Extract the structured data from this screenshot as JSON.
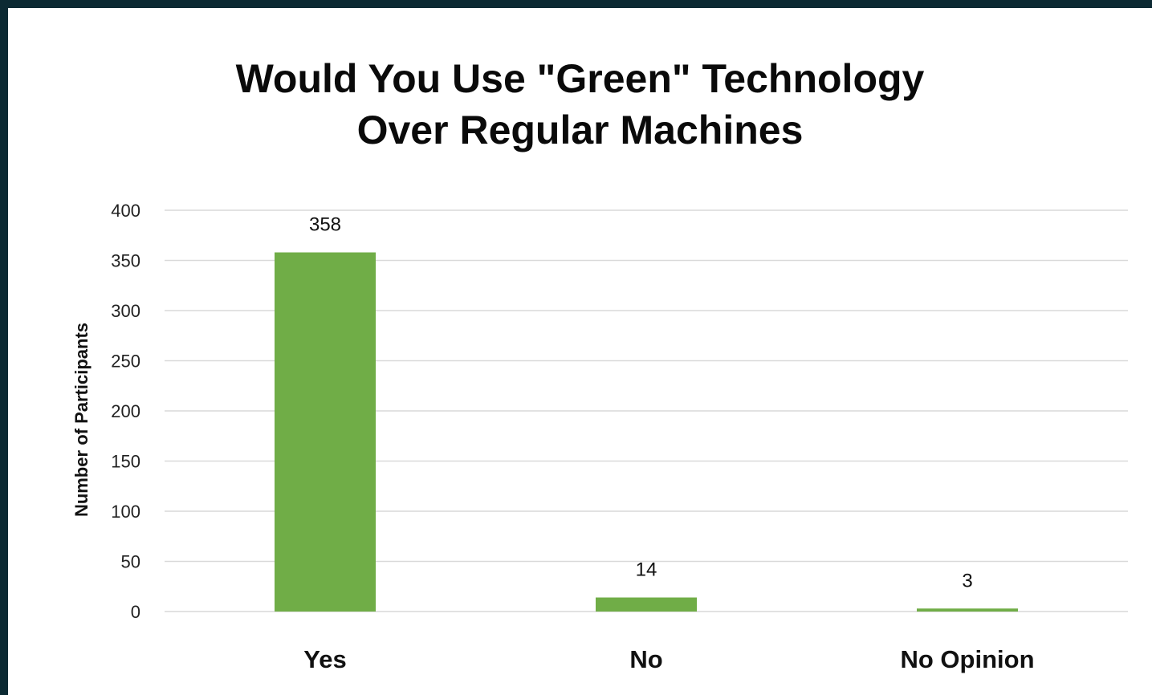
{
  "chart_data": {
    "type": "bar",
    "title_lines": [
      "Would You Use \"Green\" Technology",
      "Over Regular Machines"
    ],
    "xlabel": "",
    "ylabel": "Number of Participants",
    "categories": [
      "Yes",
      "No",
      "No Opinion"
    ],
    "values": [
      358,
      14,
      3
    ],
    "data_labels": [
      "358",
      "14",
      "3"
    ],
    "ylim": [
      0,
      400
    ],
    "yticks": [
      0,
      50,
      100,
      150,
      200,
      250,
      300,
      350,
      400
    ],
    "grid": true,
    "legend": "none",
    "bar_color": "#70ad47",
    "grid_color": "#d9d9d9"
  }
}
